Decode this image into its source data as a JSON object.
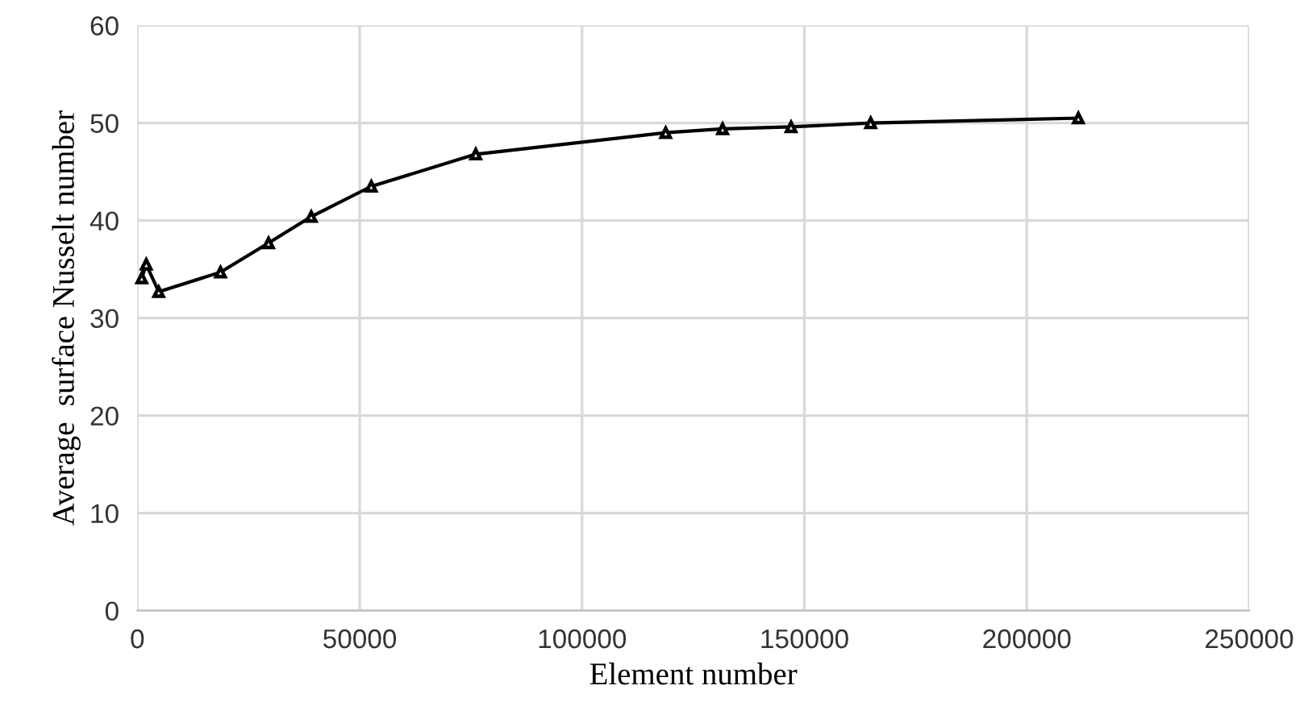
{
  "chart_data": {
    "type": "line",
    "xlabel": "Element number",
    "ylabel": "Average  surface Nusselt number",
    "series": [
      {
        "color": "#000000",
        "x": [
          1000,
          2000,
          4800,
          18700,
          29500,
          39100,
          52600,
          76100,
          118800,
          131600,
          147000,
          164900,
          211600
        ],
        "values": [
          34.1,
          35.5,
          32.7,
          34.7,
          37.7,
          40.4,
          43.5,
          46.8,
          49.0,
          49.4,
          49.6,
          50.0,
          50.5
        ]
      }
    ],
    "xlim": [
      0,
      250000
    ],
    "xticks": [
      0,
      50000,
      100000,
      150000,
      200000,
      250000
    ],
    "ylim": [
      0,
      60
    ],
    "yticks": [
      0,
      10,
      20,
      30,
      40,
      50,
      60
    ],
    "grid": true,
    "marker": "triangle",
    "line_style": "solid"
  }
}
